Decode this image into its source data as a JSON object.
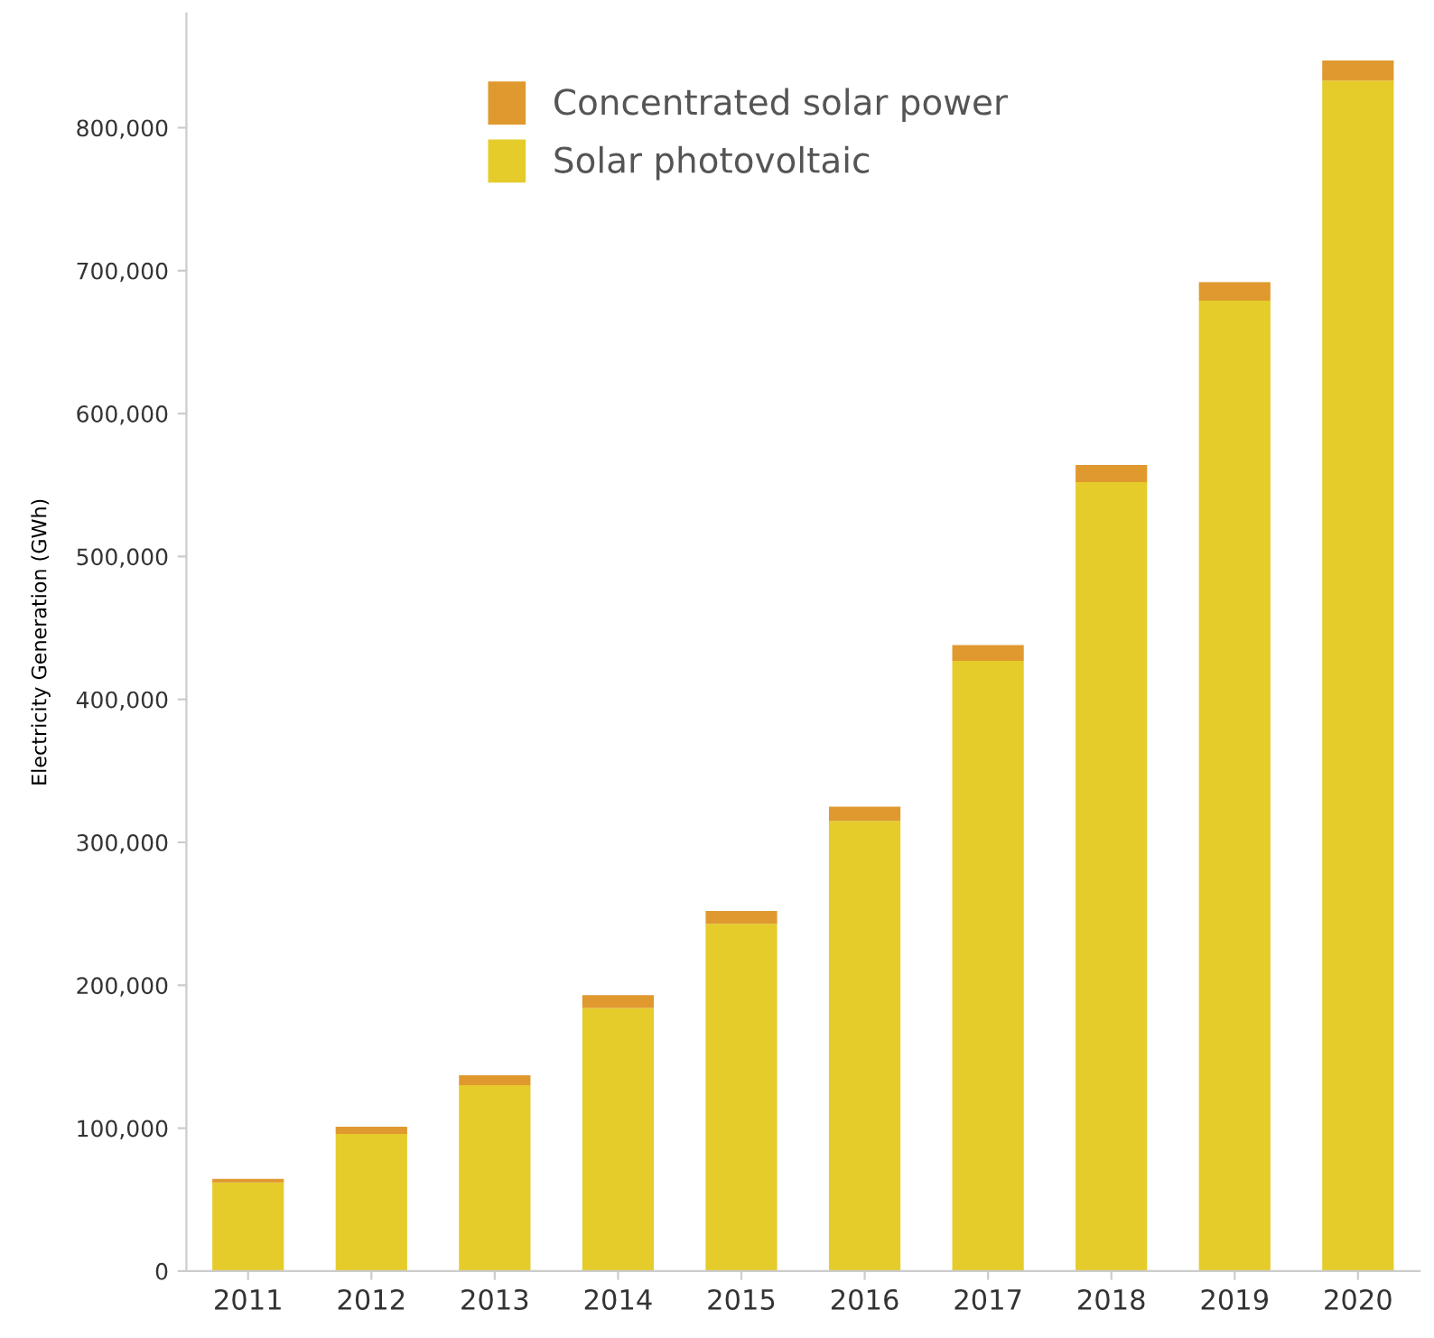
{
  "chart_data": {
    "type": "bar",
    "stacked": true,
    "ylabel": "Electricity Generation (GWh)",
    "categories": [
      "2011",
      "2012",
      "2013",
      "2014",
      "2015",
      "2016",
      "2017",
      "2018",
      "2019",
      "2020"
    ],
    "series": [
      {
        "name": "Solar photovoltaic",
        "color": "#e5cc2a",
        "values": [
          62000,
          96000,
          130000,
          184000,
          243000,
          315000,
          427000,
          552000,
          679000,
          833000
        ]
      },
      {
        "name": "Concentrated solar power",
        "color": "#e0992e",
        "values": [
          2500,
          5000,
          7000,
          9000,
          9000,
          10000,
          11000,
          12000,
          13000,
          14000
        ]
      }
    ],
    "ylim": [
      0,
      880000
    ],
    "yticks": [
      {
        "value": 0,
        "label": "0"
      },
      {
        "value": 100000,
        "label": "100,000"
      },
      {
        "value": 200000,
        "label": "200,000"
      },
      {
        "value": 300000,
        "label": "300,000"
      },
      {
        "value": 400000,
        "label": "400,000"
      },
      {
        "value": 500000,
        "label": "500,000"
      },
      {
        "value": 600000,
        "label": "600,000"
      },
      {
        "value": 700000,
        "label": "700,000"
      },
      {
        "value": 800000,
        "label": "800,000"
      }
    ],
    "grid": false,
    "legend": "top left"
  }
}
